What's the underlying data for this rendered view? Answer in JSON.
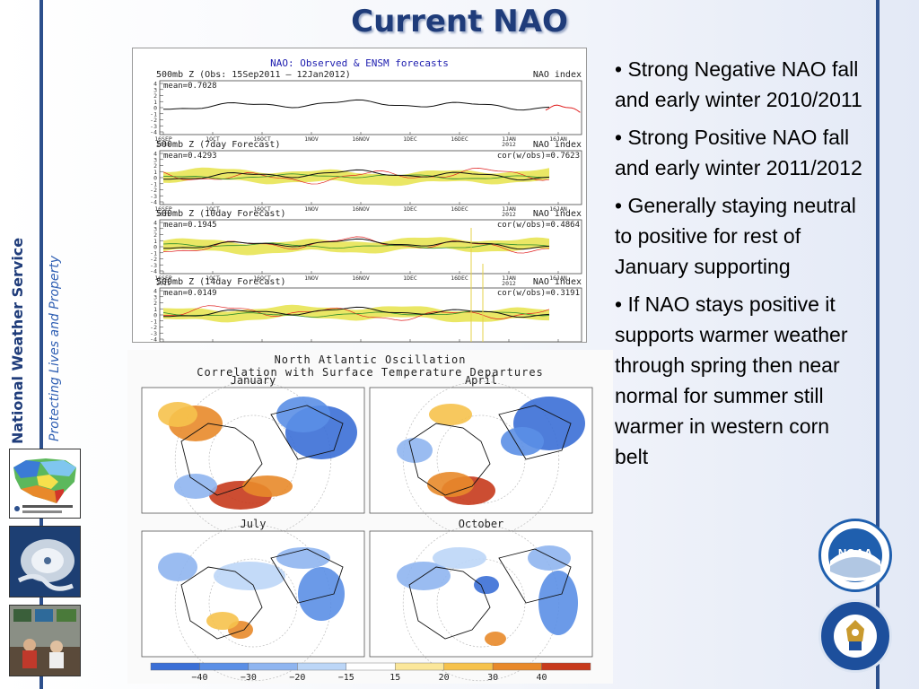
{
  "slide": {
    "title": "Current NAO",
    "org_name": "National Weather Service",
    "tagline": "Protecting Lives and Property"
  },
  "bullets": [
    "• Strong Negative NAO fall and early winter 2010/2011",
    "• Strong Positive NAO fall and early winter 2011/2012",
    "• Generally staying neutral to positive for rest of January supporting",
    "• If NAO stays positive it supports warmer weather through spring then near normal for summer still warmer in western corn belt"
  ],
  "forecast_figure": {
    "header": "NAO: Observed & ENSM forecasts",
    "x_ticks": [
      "16SEP\n2011",
      "1OCT",
      "16OCT",
      "1NOV",
      "16NOV",
      "1DEC",
      "16DEC",
      "1JAN\n2012",
      "16JAN"
    ],
    "y_ticks": [
      "4",
      "3",
      "2",
      "1",
      "0",
      "-1",
      "-2",
      "-3",
      "-4"
    ],
    "panels": [
      {
        "left": "500mb Z (Obs: 15Sep2011 — 12Jan2012)",
        "right": "NAO index",
        "mean": "mean=0.7028",
        "corr": ""
      },
      {
        "left": "500mb Z (7day Forecast)",
        "right": "NAO index",
        "mean": "mean=0.4293",
        "corr": "cor(w/obs)=0.7623"
      },
      {
        "left": "500mb Z (10day Forecast)",
        "right": "NAO index",
        "mean": "mean=0.1945",
        "corr": "cor(w/obs)=0.4864"
      },
      {
        "left": "500mb Z (14day Forecast)",
        "right": "NAO index",
        "mean": "mean=0.0149",
        "corr": "cor(w/obs)=0.3191"
      }
    ]
  },
  "correlation_figure": {
    "title_line1": "North Atlantic Oscillation",
    "title_line2": "Correlation with Surface Temperature Departures",
    "maps": [
      "January",
      "April",
      "July",
      "October"
    ],
    "colorbar_labels": [
      "−40",
      "−30",
      "−20",
      "−15",
      "15",
      "20",
      "30",
      "40"
    ],
    "colorbar_colors": [
      "#3b6fd6",
      "#5b8fe6",
      "#8fb5f0",
      "#bcd6f7",
      "#ffffff",
      "#fbe79b",
      "#f6c24c",
      "#e8892a",
      "#c73a1c"
    ]
  },
  "logos": {
    "noaa": "NOAA",
    "doc": "DEPARTMENT OF COMMERCE • UNITED STATES OF AMERICA"
  }
}
